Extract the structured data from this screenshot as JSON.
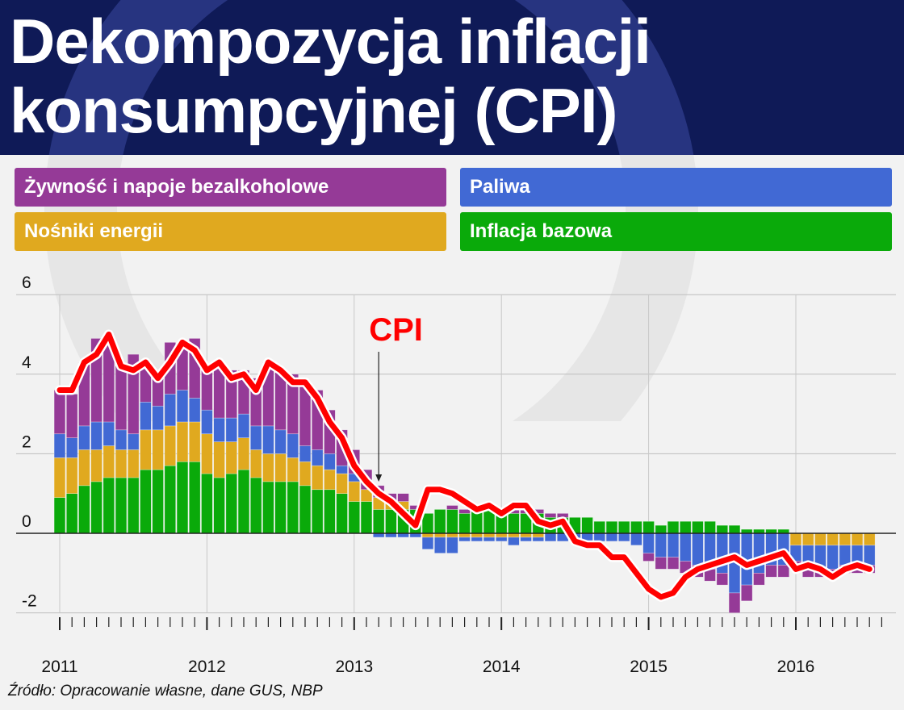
{
  "title": "Dekompozycja inflacji konsumpcyjnej (CPI)",
  "source": "Źródło: Opracowanie własne, dane GUS, NBP",
  "colors": {
    "header_bg": "#0f1a57",
    "food": "#953a97",
    "fuel": "#4169d4",
    "energy": "#e0a91f",
    "core": "#0aaa0a",
    "cpi": "#ff0000"
  },
  "legend": [
    {
      "key": "food",
      "label": "Żywność i napoje bezalkoholowe"
    },
    {
      "key": "fuel",
      "label": "Paliwa"
    },
    {
      "key": "energy",
      "label": "Nośniki energii"
    },
    {
      "key": "core",
      "label": "Inflacja bazowa"
    }
  ],
  "chart_data": {
    "type": "bar",
    "stacked": true,
    "frequency": "monthly",
    "start": "2011-01",
    "ylim": [
      -2,
      6
    ],
    "yticks": [
      -2,
      0,
      2,
      4,
      6
    ],
    "xticks": [
      "2011",
      "2012",
      "2013",
      "2014",
      "2015",
      "2016"
    ],
    "grid": "horizontal",
    "annotation": {
      "text": "CPI",
      "target": "2013-03"
    },
    "series": [
      {
        "key": "core",
        "name": "Inflacja bazowa",
        "values": [
          0.9,
          1.0,
          1.2,
          1.3,
          1.4,
          1.4,
          1.4,
          1.6,
          1.6,
          1.7,
          1.8,
          1.8,
          1.5,
          1.4,
          1.5,
          1.6,
          1.4,
          1.3,
          1.3,
          1.3,
          1.2,
          1.1,
          1.1,
          1.0,
          0.8,
          0.8,
          0.6,
          0.6,
          0.6,
          0.6,
          0.5,
          0.6,
          0.6,
          0.5,
          0.6,
          0.6,
          0.5,
          0.5,
          0.5,
          0.5,
          0.4,
          0.4,
          0.4,
          0.4,
          0.3,
          0.3,
          0.3,
          0.3,
          0.3,
          0.2,
          0.3,
          0.3,
          0.3,
          0.3,
          0.2,
          0.2,
          0.1,
          0.1,
          0.1,
          0.1,
          0.0,
          0.0,
          0.0,
          0.0,
          0.0,
          0.0,
          0.0
        ]
      },
      {
        "key": "energy",
        "name": "Nośniki energii",
        "values": [
          1.0,
          0.9,
          0.9,
          0.8,
          0.8,
          0.7,
          0.7,
          1.0,
          1.0,
          1.0,
          1.0,
          1.0,
          1.0,
          0.9,
          0.8,
          0.8,
          0.7,
          0.7,
          0.7,
          0.6,
          0.6,
          0.6,
          0.5,
          0.5,
          0.5,
          0.3,
          0.3,
          0.2,
          0.2,
          0.0,
          -0.1,
          -0.1,
          -0.1,
          -0.1,
          -0.1,
          -0.1,
          -0.1,
          -0.1,
          -0.1,
          -0.1,
          0.0,
          0.0,
          0.0,
          0.0,
          0.0,
          0.0,
          0.0,
          0.0,
          0.0,
          0.0,
          0.0,
          0.0,
          0.0,
          0.0,
          0.0,
          0.0,
          0.0,
          0.0,
          0.0,
          0.0,
          -0.3,
          -0.3,
          -0.3,
          -0.3,
          -0.3,
          -0.3,
          -0.3
        ]
      },
      {
        "key": "fuel",
        "name": "Paliwa",
        "values": [
          0.6,
          0.5,
          0.6,
          0.7,
          0.6,
          0.5,
          0.4,
          0.7,
          0.6,
          0.8,
          0.8,
          0.6,
          0.6,
          0.6,
          0.6,
          0.6,
          0.6,
          0.7,
          0.6,
          0.6,
          0.4,
          0.4,
          0.4,
          0.2,
          0.2,
          0.0,
          -0.1,
          -0.1,
          -0.1,
          -0.1,
          -0.3,
          -0.4,
          -0.4,
          -0.1,
          -0.1,
          -0.1,
          -0.1,
          -0.2,
          -0.1,
          -0.1,
          -0.2,
          -0.2,
          -0.2,
          -0.2,
          -0.2,
          -0.2,
          -0.2,
          -0.3,
          -0.5,
          -0.6,
          -0.6,
          -0.7,
          -0.8,
          -0.9,
          -1.0,
          -1.5,
          -1.3,
          -1.0,
          -0.8,
          -0.8,
          -0.4,
          -0.6,
          -0.6,
          -0.6,
          -0.5,
          -0.5,
          -0.5
        ]
      },
      {
        "key": "food",
        "name": "Żywność i napoje bezalkoholowe",
        "values": [
          1.1,
          1.1,
          1.6,
          2.1,
          2.2,
          1.6,
          2.0,
          0.9,
          0.9,
          1.3,
          1.1,
          1.5,
          1.1,
          1.3,
          1.2,
          1.1,
          1.2,
          1.6,
          1.5,
          1.5,
          1.6,
          1.5,
          1.1,
          0.9,
          0.6,
          0.5,
          0.3,
          0.2,
          0.2,
          0.1,
          0.0,
          0.0,
          0.1,
          0.1,
          0.1,
          0.1,
          0.1,
          0.1,
          0.1,
          0.1,
          0.1,
          0.1,
          0.0,
          0.0,
          0.0,
          0.0,
          0.0,
          0.0,
          -0.2,
          -0.3,
          -0.3,
          -0.3,
          -0.3,
          -0.3,
          -0.3,
          -0.5,
          -0.4,
          -0.3,
          -0.3,
          -0.3,
          -0.2,
          -0.2,
          -0.2,
          -0.2,
          -0.2,
          -0.2,
          -0.2
        ]
      }
    ],
    "cpi": [
      3.6,
      3.6,
      4.3,
      4.5,
      5.0,
      4.2,
      4.1,
      4.3,
      3.9,
      4.3,
      4.8,
      4.6,
      4.1,
      4.3,
      3.9,
      4.0,
      3.6,
      4.3,
      4.1,
      3.8,
      3.8,
      3.4,
      2.8,
      2.4,
      1.7,
      1.3,
      1.0,
      0.8,
      0.5,
      0.2,
      1.1,
      1.1,
      1.0,
      0.8,
      0.6,
      0.7,
      0.5,
      0.7,
      0.7,
      0.3,
      0.2,
      0.3,
      -0.2,
      -0.3,
      -0.3,
      -0.6,
      -0.6,
      -1.0,
      -1.4,
      -1.6,
      -1.5,
      -1.1,
      -0.9,
      -0.8,
      -0.7,
      -0.6,
      -0.8,
      -0.7,
      -0.6,
      -0.5,
      -0.9,
      -0.8,
      -0.9,
      -1.1,
      -0.9,
      -0.8,
      -0.9
    ]
  }
}
